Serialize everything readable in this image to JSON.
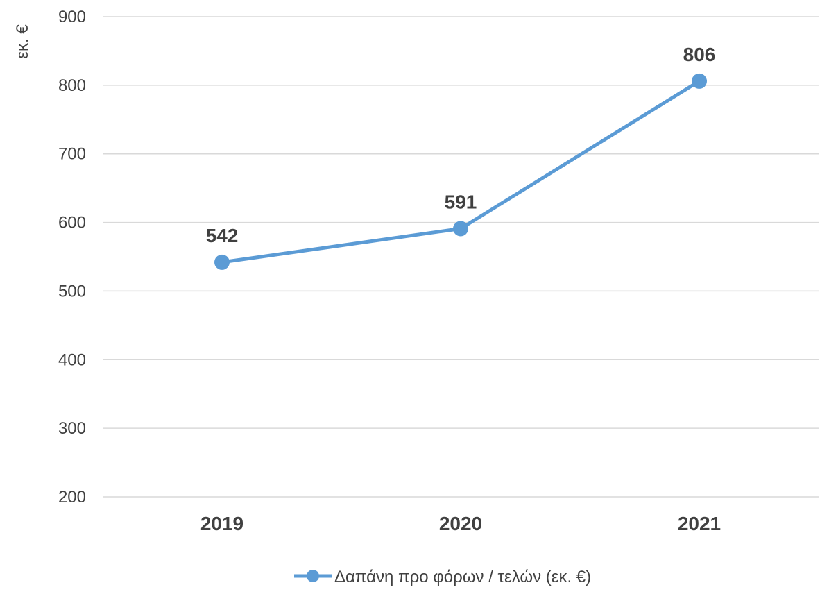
{
  "chart_data": {
    "type": "line",
    "categories": [
      "2019",
      "2020",
      "2021"
    ],
    "series": [
      {
        "name": "Δαπάνη προ φόρων / τελών (εκ. €)",
        "values": [
          542,
          591,
          806
        ],
        "color": "#5b9bd5"
      }
    ],
    "data_labels": [
      "542",
      "591",
      "806"
    ],
    "ylabel": "εκ. €",
    "ylim": [
      200,
      900
    ],
    "yticks": [
      "200",
      "300",
      "400",
      "500",
      "600",
      "700",
      "800",
      "900"
    ],
    "grid": true,
    "legend": "bottom"
  }
}
